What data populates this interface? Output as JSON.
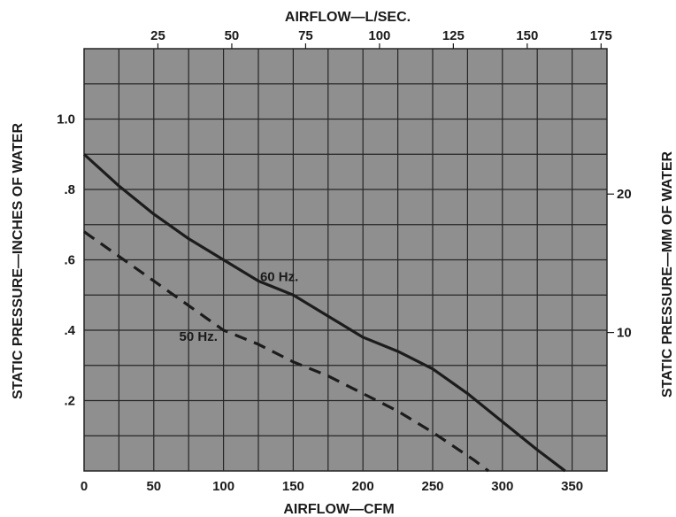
{
  "chart_data": {
    "type": "line",
    "title": "",
    "xlabel": "AIRFLOW—CFM",
    "xlabel_top": "AIRFLOW—L/SEC.",
    "ylabel": "STATIC PRESSURE—INCHES OF WATER",
    "ylabel_right": "STATIC PRESSURE—MM OF WATER",
    "xlim": [
      0,
      375
    ],
    "ylim": [
      0,
      1.2
    ],
    "xlim_top": [
      0,
      177
    ],
    "ylim_right": [
      0,
      30.5
    ],
    "grid": true,
    "x_ticks": [
      {
        "value": 0,
        "label": "0"
      },
      {
        "value": 50,
        "label": "50"
      },
      {
        "value": 100,
        "label": "100"
      },
      {
        "value": 150,
        "label": "150"
      },
      {
        "value": 200,
        "label": "200"
      },
      {
        "value": 250,
        "label": "250"
      },
      {
        "value": 300,
        "label": "300"
      },
      {
        "value": 350,
        "label": "350"
      }
    ],
    "y_ticks": [
      {
        "value": 0.2,
        "label": ".2"
      },
      {
        "value": 0.4,
        "label": ".4"
      },
      {
        "value": 0.6,
        "label": ".6"
      },
      {
        "value": 0.8,
        "label": ".8"
      },
      {
        "value": 1.0,
        "label": "1.0"
      }
    ],
    "x_top_ticks": [
      {
        "value": 25,
        "label": "25"
      },
      {
        "value": 50,
        "label": "50"
      },
      {
        "value": 75,
        "label": "75"
      },
      {
        "value": 100,
        "label": "100"
      },
      {
        "value": 125,
        "label": "125"
      },
      {
        "value": 150,
        "label": "150"
      },
      {
        "value": 175,
        "label": "175"
      }
    ],
    "y_right_ticks": [
      {
        "value": 10,
        "label": "10"
      },
      {
        "value": 20,
        "label": "20"
      }
    ],
    "series": [
      {
        "name": "60 Hz.",
        "style": "solid",
        "color": "#1c1c1c",
        "x": [
          0,
          25,
          50,
          75,
          100,
          125,
          150,
          175,
          200,
          225,
          250,
          275,
          300,
          325,
          345
        ],
        "y": [
          0.9,
          0.81,
          0.73,
          0.66,
          0.6,
          0.54,
          0.5,
          0.44,
          0.38,
          0.34,
          0.29,
          0.22,
          0.14,
          0.06,
          0.0
        ]
      },
      {
        "name": "50 Hz.",
        "style": "dashed",
        "color": "#1c1c1c",
        "x": [
          0,
          25,
          50,
          75,
          100,
          125,
          150,
          175,
          200,
          225,
          250,
          265,
          280,
          290
        ],
        "y": [
          0.68,
          0.61,
          0.54,
          0.47,
          0.4,
          0.36,
          0.31,
          0.27,
          0.22,
          0.17,
          0.11,
          0.07,
          0.03,
          0.0
        ]
      }
    ],
    "annotations": [
      {
        "text": "60 Hz.",
        "x": 140,
        "y": 0.54
      },
      {
        "text": "50 Hz.",
        "x": 82,
        "y": 0.37
      }
    ],
    "colors": {
      "plot_background": "#8f8f8f",
      "grid": "#262626",
      "text": "#1a1a1a"
    }
  }
}
